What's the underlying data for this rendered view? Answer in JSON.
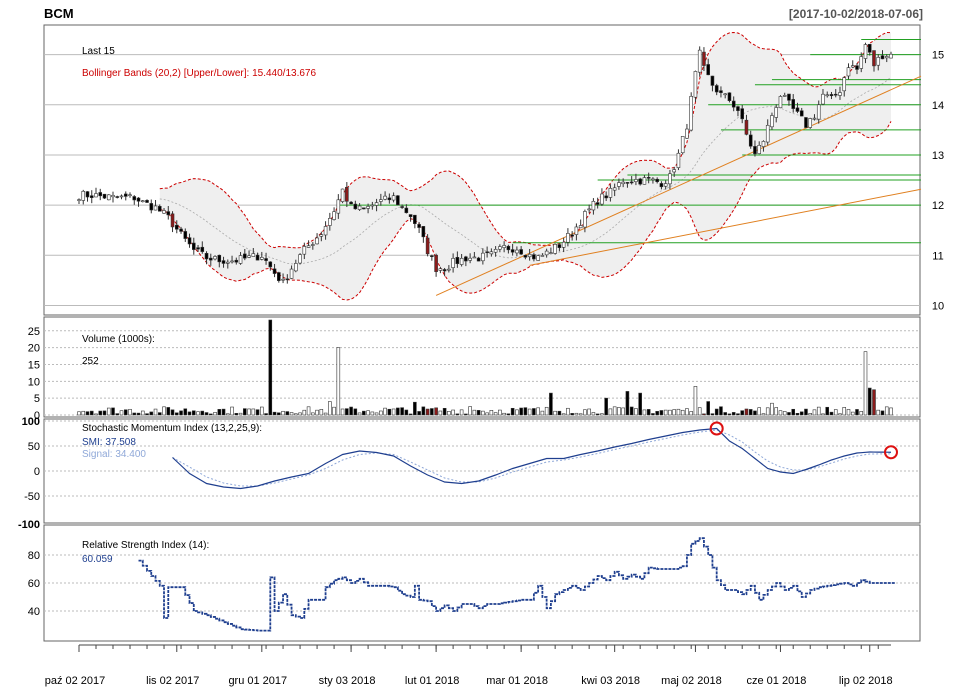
{
  "header": {
    "symbol": "BCM",
    "date_range": "[2017-10-02/2018-07-06]"
  },
  "price_panel": {
    "last_label": "Last 15",
    "bbands_label": "Bollinger Bands (20,2) [Upper/Lower]: 15.440/13.676",
    "y_ticks": [
      10,
      11,
      12,
      13,
      14,
      15
    ],
    "ylim": [
      9.85,
      15.55
    ]
  },
  "volume_panel": {
    "label": "Volume (1000s):",
    "value": "252",
    "y_ticks": [
      0,
      5,
      10,
      15,
      20,
      25
    ],
    "ylim": [
      0,
      28.5
    ]
  },
  "smi_panel": {
    "label": "Stochastic Momentum Index (13,2,25,9):",
    "smi_text": "SMI: 37.508",
    "signal_text": "Signal: 34.400",
    "y_ticks": [
      -50,
      0,
      50,
      100
    ],
    "ylim": [
      -100,
      100
    ]
  },
  "rsi_panel": {
    "label": "Relative Strength Index (14):",
    "value_text": "60.059",
    "y_ticks": [
      40,
      60,
      80
    ],
    "tick_minus100": "-100",
    "ylim": [
      20,
      100
    ]
  },
  "x_axis": {
    "ticks": [
      {
        "label": "paź 02 2017",
        "i": 0
      },
      {
        "label": "lis 02 2017",
        "i": 23
      },
      {
        "label": "gru 01 2017",
        "i": 43
      },
      {
        "label": "sty 03 2018",
        "i": 64
      },
      {
        "label": "lut 01 2018",
        "i": 84
      },
      {
        "label": "mar 01 2018",
        "i": 104
      },
      {
        "label": "kwi 03 2018",
        "i": 126
      },
      {
        "label": "maj 02 2018",
        "i": 145
      },
      {
        "label": "cze 01 2018",
        "i": 165
      },
      {
        "label": "lip 02 2018",
        "i": 186
      }
    ]
  },
  "colors": {
    "up": "#ffffff",
    "down": "#000000",
    "down_big": "#8b1a1a",
    "bband": "#cc0000",
    "trend": "#e08020",
    "support": "#22a022",
    "smi": "#1f3f8f",
    "signal": "#8fa8d8",
    "rsi": "#1f3f8f"
  },
  "chart_data": {
    "type": "candlestick",
    "n_bars": 192,
    "close_anchors": [
      [
        0,
        12.2
      ],
      [
        3,
        12.2
      ],
      [
        8,
        12.15
      ],
      [
        13,
        12.15
      ],
      [
        15,
        12.05
      ],
      [
        18,
        11.95
      ],
      [
        21,
        11.75
      ],
      [
        24,
        11.4
      ],
      [
        27,
        11.1
      ],
      [
        30,
        10.95
      ],
      [
        33,
        10.9
      ],
      [
        37,
        10.9
      ],
      [
        40,
        10.95
      ],
      [
        43,
        11.0
      ],
      [
        46,
        10.65
      ],
      [
        48,
        10.45
      ],
      [
        50,
        10.75
      ],
      [
        53,
        11.1
      ],
      [
        57,
        11.45
      ],
      [
        60,
        11.9
      ],
      [
        62,
        12.3
      ],
      [
        64,
        11.95
      ],
      [
        67,
        11.9
      ],
      [
        70,
        12.05
      ],
      [
        72,
        12.1
      ],
      [
        74,
        12.15
      ],
      [
        76,
        11.95
      ],
      [
        78,
        11.8
      ],
      [
        80,
        11.5
      ],
      [
        82,
        11.1
      ],
      [
        84,
        10.75
      ],
      [
        86,
        10.75
      ],
      [
        88,
        10.85
      ],
      [
        91,
        10.95
      ],
      [
        94,
        10.95
      ],
      [
        97,
        11.0
      ],
      [
        100,
        11.15
      ],
      [
        103,
        11.15
      ],
      [
        106,
        11.0
      ],
      [
        108,
        10.95
      ],
      [
        110,
        11.05
      ],
      [
        113,
        11.2
      ],
      [
        116,
        11.45
      ],
      [
        119,
        11.8
      ],
      [
        122,
        12.1
      ],
      [
        125,
        12.25
      ],
      [
        128,
        12.5
      ],
      [
        131,
        12.5
      ],
      [
        134,
        12.5
      ],
      [
        137,
        12.45
      ],
      [
        139,
        12.55
      ],
      [
        141,
        13.0
      ],
      [
        143,
        13.6
      ],
      [
        145,
        14.6
      ],
      [
        146,
        15.0
      ],
      [
        147,
        14.7
      ],
      [
        149,
        14.4
      ],
      [
        151,
        14.2
      ],
      [
        153,
        14.1
      ],
      [
        155,
        13.9
      ],
      [
        157,
        13.4
      ],
      [
        159,
        13.0
      ],
      [
        161,
        13.3
      ],
      [
        163,
        13.8
      ],
      [
        165,
        14.2
      ],
      [
        167,
        14.0
      ],
      [
        169,
        13.8
      ],
      [
        171,
        13.6
      ],
      [
        173,
        13.8
      ],
      [
        175,
        14.2
      ],
      [
        177,
        14.1
      ],
      [
        179,
        14.3
      ],
      [
        181,
        14.8
      ],
      [
        183,
        14.7
      ],
      [
        185,
        15.2
      ],
      [
        187,
        14.8
      ],
      [
        189,
        15.0
      ],
      [
        191,
        15.0
      ]
    ],
    "volume_spikes": [
      [
        45,
        28.2
      ],
      [
        61,
        20
      ],
      [
        59,
        4
      ],
      [
        79,
        3.8
      ],
      [
        92,
        2.5
      ],
      [
        111,
        6.5
      ],
      [
        115,
        2
      ],
      [
        124,
        5
      ],
      [
        129,
        7
      ],
      [
        132,
        6.5
      ],
      [
        145,
        8.5
      ],
      [
        148,
        4
      ],
      [
        163,
        3.5
      ],
      [
        185,
        18.8
      ],
      [
        186,
        8
      ],
      [
        187,
        7.5
      ]
    ],
    "smi_anchors": [
      [
        22,
        27
      ],
      [
        26,
        -5
      ],
      [
        30,
        -25
      ],
      [
        34,
        -32
      ],
      [
        38,
        -35
      ],
      [
        42,
        -30
      ],
      [
        46,
        -20
      ],
      [
        50,
        -12
      ],
      [
        54,
        -5
      ],
      [
        58,
        15
      ],
      [
        62,
        33
      ],
      [
        66,
        40
      ],
      [
        70,
        37
      ],
      [
        74,
        30
      ],
      [
        78,
        10
      ],
      [
        82,
        -8
      ],
      [
        86,
        -22
      ],
      [
        90,
        -25
      ],
      [
        94,
        -20
      ],
      [
        98,
        -8
      ],
      [
        102,
        5
      ],
      [
        106,
        15
      ],
      [
        110,
        25
      ],
      [
        114,
        25
      ],
      [
        118,
        33
      ],
      [
        122,
        40
      ],
      [
        126,
        48
      ],
      [
        130,
        55
      ],
      [
        134,
        63
      ],
      [
        138,
        70
      ],
      [
        142,
        77
      ],
      [
        146,
        82
      ],
      [
        150,
        85
      ],
      [
        153,
        60
      ],
      [
        156,
        45
      ],
      [
        159,
        25
      ],
      [
        162,
        5
      ],
      [
        165,
        -2
      ],
      [
        168,
        -5
      ],
      [
        171,
        3
      ],
      [
        174,
        12
      ],
      [
        177,
        22
      ],
      [
        180,
        30
      ],
      [
        183,
        36
      ],
      [
        186,
        38
      ],
      [
        191,
        37.5
      ]
    ],
    "signal_anchors": [
      [
        22,
        27
      ],
      [
        26,
        8
      ],
      [
        30,
        -12
      ],
      [
        34,
        -24
      ],
      [
        38,
        -30
      ],
      [
        42,
        -30
      ],
      [
        46,
        -24
      ],
      [
        50,
        -16
      ],
      [
        54,
        -8
      ],
      [
        58,
        5
      ],
      [
        62,
        22
      ],
      [
        66,
        33
      ],
      [
        70,
        36
      ],
      [
        74,
        33
      ],
      [
        78,
        18
      ],
      [
        82,
        2
      ],
      [
        86,
        -14
      ],
      [
        90,
        -22
      ],
      [
        94,
        -22
      ],
      [
        98,
        -14
      ],
      [
        102,
        -2
      ],
      [
        106,
        8
      ],
      [
        110,
        18
      ],
      [
        114,
        22
      ],
      [
        118,
        28
      ],
      [
        122,
        35
      ],
      [
        126,
        43
      ],
      [
        130,
        50
      ],
      [
        134,
        58
      ],
      [
        138,
        65
      ],
      [
        142,
        72
      ],
      [
        146,
        78
      ],
      [
        150,
        82
      ],
      [
        153,
        72
      ],
      [
        156,
        58
      ],
      [
        159,
        38
      ],
      [
        162,
        20
      ],
      [
        165,
        8
      ],
      [
        168,
        2
      ],
      [
        171,
        2
      ],
      [
        174,
        8
      ],
      [
        177,
        16
      ],
      [
        180,
        24
      ],
      [
        183,
        30
      ],
      [
        186,
        34
      ],
      [
        191,
        34.4
      ]
    ],
    "rsi_anchors": [
      [
        14,
        76
      ],
      [
        17,
        65
      ],
      [
        19,
        58
      ],
      [
        20,
        35
      ],
      [
        21,
        57
      ],
      [
        24,
        57
      ],
      [
        27,
        40
      ],
      [
        30,
        37
      ],
      [
        34,
        32
      ],
      [
        38,
        27
      ],
      [
        42,
        26
      ],
      [
        44,
        26
      ],
      [
        45,
        64
      ],
      [
        46,
        40
      ],
      [
        48,
        52
      ],
      [
        50,
        37
      ],
      [
        52,
        35
      ],
      [
        54,
        48
      ],
      [
        57,
        48
      ],
      [
        58,
        57
      ],
      [
        60,
        62
      ],
      [
        62,
        64
      ],
      [
        64,
        60
      ],
      [
        66,
        63
      ],
      [
        68,
        58
      ],
      [
        72,
        58
      ],
      [
        74,
        57
      ],
      [
        76,
        52
      ],
      [
        78,
        50
      ],
      [
        79,
        58
      ],
      [
        80,
        48
      ],
      [
        82,
        47
      ],
      [
        84,
        40
      ],
      [
        86,
        44
      ],
      [
        88,
        40
      ],
      [
        90,
        45
      ],
      [
        92,
        45
      ],
      [
        94,
        42
      ],
      [
        96,
        45
      ],
      [
        98,
        45
      ],
      [
        100,
        46
      ],
      [
        102,
        47
      ],
      [
        104,
        48
      ],
      [
        106,
        48
      ],
      [
        108,
        58
      ],
      [
        110,
        42
      ],
      [
        112,
        52
      ],
      [
        114,
        55
      ],
      [
        116,
        58
      ],
      [
        118,
        55
      ],
      [
        120,
        60
      ],
      [
        122,
        65
      ],
      [
        124,
        62
      ],
      [
        126,
        68
      ],
      [
        128,
        63
      ],
      [
        130,
        66
      ],
      [
        132,
        63
      ],
      [
        134,
        71
      ],
      [
        136,
        70
      ],
      [
        138,
        70
      ],
      [
        140,
        70
      ],
      [
        142,
        72
      ],
      [
        144,
        88
      ],
      [
        146,
        92
      ],
      [
        148,
        80
      ],
      [
        150,
        62
      ],
      [
        152,
        55
      ],
      [
        154,
        55
      ],
      [
        156,
        52
      ],
      [
        158,
        58
      ],
      [
        160,
        48
      ],
      [
        162,
        55
      ],
      [
        164,
        60
      ],
      [
        166,
        55
      ],
      [
        168,
        58
      ],
      [
        170,
        50
      ],
      [
        172,
        55
      ],
      [
        174,
        57
      ],
      [
        176,
        58
      ],
      [
        178,
        59
      ],
      [
        180,
        60
      ],
      [
        182,
        58
      ],
      [
        184,
        62
      ],
      [
        186,
        60
      ],
      [
        188,
        60
      ],
      [
        191,
        60
      ]
    ],
    "support_lines": [
      [
        15.3,
        184,
        191
      ],
      [
        15.0,
        172,
        191
      ],
      [
        14.5,
        163,
        191
      ],
      [
        14.4,
        159,
        191
      ],
      [
        14.0,
        148,
        191
      ],
      [
        13.5,
        151,
        191
      ],
      [
        13.0,
        156,
        191
      ],
      [
        12.6,
        129,
        191
      ],
      [
        12.5,
        122,
        191
      ],
      [
        12.0,
        61,
        191
      ],
      [
        11.25,
        102,
        191
      ]
    ],
    "trend_lines": [
      [
        84,
        10.2,
        191,
        14.3
      ],
      [
        106,
        10.8,
        191,
        12.2
      ]
    ]
  }
}
